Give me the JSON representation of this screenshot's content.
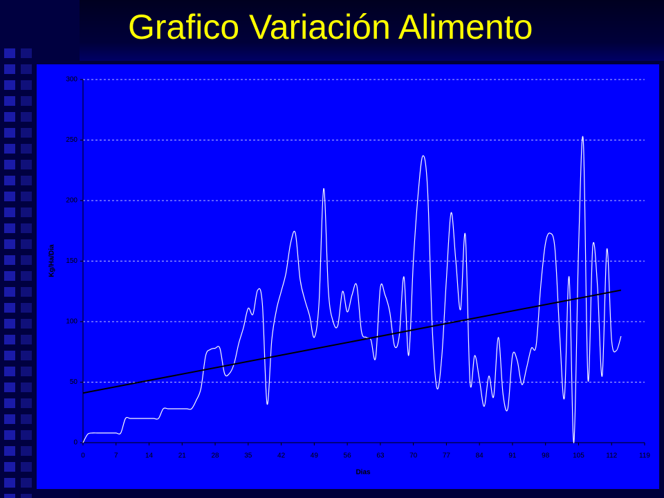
{
  "chart_data": {
    "type": "line",
    "title": "Grafico Variación Alimento",
    "x_label": "Dias",
    "y_label": "Kg/Ha/Dia",
    "x": [
      0,
      1,
      2,
      3,
      4,
      5,
      6,
      7,
      8,
      9,
      10,
      11,
      12,
      13,
      14,
      15,
      16,
      17,
      18,
      19,
      20,
      21,
      22,
      23,
      24,
      25,
      26,
      27,
      28,
      29,
      30,
      31,
      32,
      33,
      34,
      35,
      36,
      37,
      38,
      39,
      40,
      41,
      42,
      43,
      44,
      45,
      46,
      47,
      48,
      49,
      50,
      51,
      52,
      53,
      54,
      55,
      56,
      57,
      58,
      59,
      60,
      61,
      62,
      63,
      64,
      65,
      66,
      67,
      68,
      69,
      70,
      71,
      72,
      73,
      74,
      75,
      76,
      77,
      78,
      79,
      80,
      81,
      82,
      83,
      84,
      85,
      86,
      87,
      88,
      89,
      90,
      91,
      92,
      93,
      94,
      95,
      96,
      97,
      98,
      99,
      100,
      101,
      102,
      103,
      104,
      105,
      106,
      107,
      108,
      109,
      110,
      111,
      112,
      113,
      114
    ],
    "series": [
      {
        "color": "#ffffff",
        "smooth": true,
        "values": [
          0,
          7,
          8,
          8,
          8,
          8,
          8,
          8,
          8,
          20,
          20,
          20,
          20,
          20,
          20,
          20,
          20,
          28,
          28,
          28,
          28,
          28,
          28,
          28,
          35,
          45,
          72,
          77,
          78,
          78,
          57,
          57,
          65,
          82,
          95,
          111,
          106,
          126,
          115,
          32,
          85,
          110,
          125,
          140,
          165,
          173,
          135,
          118,
          105,
          87,
          115,
          210,
          125,
          100,
          97,
          125,
          108,
          122,
          130,
          92,
          87,
          85,
          70,
          128,
          122,
          108,
          80,
          88,
          137,
          72,
          150,
          205,
          237,
          210,
          95,
          45,
          70,
          135,
          190,
          150,
          110,
          172,
          50,
          72,
          52,
          30,
          55,
          38,
          87,
          40,
          28,
          72,
          68,
          48,
          62,
          78,
          80,
          130,
          165,
          173,
          160,
          90,
          37,
          137,
          0,
          160,
          250,
          52,
          162,
          130,
          55,
          160,
          85,
          76,
          88
        ]
      },
      {
        "color": "#000000",
        "smooth": false,
        "x": [
          0,
          114
        ],
        "values": [
          41,
          126
        ]
      }
    ],
    "xlim": [
      0,
      119
    ],
    "xticks": [
      0,
      7,
      14,
      21,
      28,
      35,
      42,
      49,
      56,
      63,
      70,
      77,
      84,
      91,
      98,
      105,
      112,
      119
    ],
    "ylim": [
      0,
      300
    ],
    "yticks": [
      0,
      50,
      100,
      150,
      200,
      250,
      300
    ],
    "grid": true
  }
}
